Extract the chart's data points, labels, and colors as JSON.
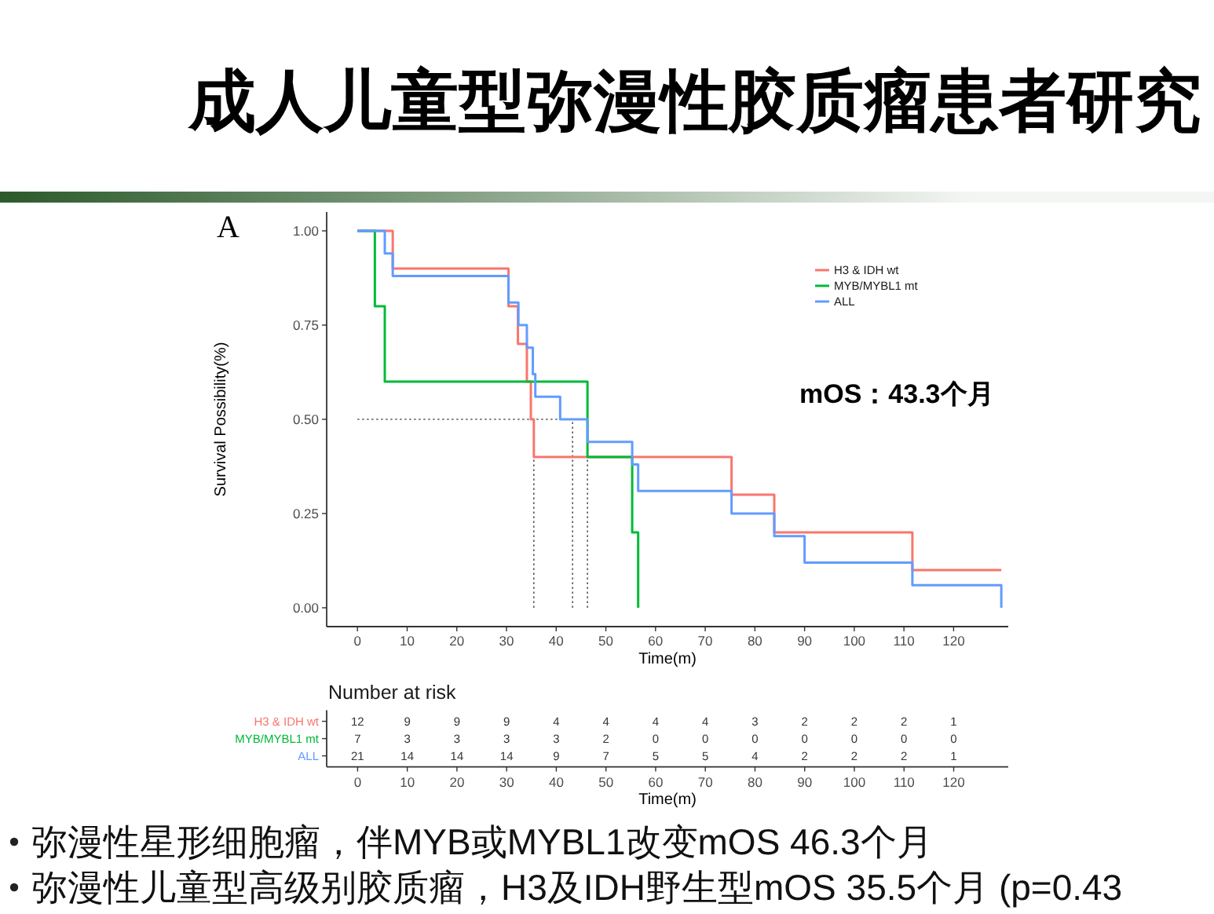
{
  "chart_data": [
    {
      "type": "step",
      "title": "成人儿童型弥漫性胶质瘤患者研究",
      "xlabel": "Time(m)",
      "ylabel": "Survival Possibility(%)",
      "xlim": [
        -6.2,
        131
      ],
      "ylim": [
        -0.05,
        1.05
      ],
      "xticks": [
        0,
        10,
        20,
        30,
        40,
        50,
        60,
        70,
        80,
        90,
        100,
        110,
        120
      ],
      "yticks": [
        {
          "value": 0,
          "label": "0.00"
        },
        {
          "value": 0.25,
          "label": "0.25"
        },
        {
          "value": 0.5,
          "label": "0.50"
        },
        {
          "value": 0.75,
          "label": "0.75"
        },
        {
          "value": 1,
          "label": "1.00"
        }
      ],
      "legend": "top right",
      "series": [
        {
          "name": "H3 & IDH wt",
          "color": "#F8766D",
          "x": [
            0,
            7.1,
            30.4,
            32.3,
            34.1,
            34.9,
            35.5,
            75.3,
            83.9,
            111.7,
            129.6
          ],
          "values": [
            1,
            0.9,
            0.8,
            0.7,
            0.6,
            0.5,
            0.4,
            0.3,
            0.2,
            0.1,
            0.1
          ]
        },
        {
          "name": "MYB/MYBL1 mt",
          "color": "#00BA38",
          "x": [
            0,
            3.5,
            5.5,
            46.3,
            55.3,
            56.5
          ],
          "values": [
            1,
            0.8,
            0.6,
            0.4,
            0.2,
            0
          ]
        },
        {
          "name": "ALL",
          "color": "#619CFF",
          "x": [
            0,
            5.5,
            7.1,
            30.4,
            32.4,
            34.1,
            35.3,
            35.8,
            40.8,
            46.3,
            55.3,
            56.5,
            75.3,
            83.9,
            90,
            111.7,
            129.6
          ],
          "values": [
            1,
            0.94,
            0.88,
            0.81,
            0.75,
            0.69,
            0.62,
            0.56,
            0.5,
            0.44,
            0.38,
            0.31,
            0.25,
            0.19,
            0.12,
            0.06,
            0
          ]
        }
      ],
      "ref_lines": [
        {
          "axis": "y",
          "value": 0.5,
          "color": "#555555",
          "line_style": "dotted"
        },
        {
          "axis": "x",
          "value": 35.5,
          "color": "#555555",
          "line_style": "dotted"
        },
        {
          "axis": "x",
          "value": 43.3,
          "color": "#555555",
          "line_style": "dotted"
        },
        {
          "axis": "x",
          "value": 46.3,
          "color": "#555555",
          "line_style": "dotted"
        }
      ],
      "annotations": [
        "A",
        "mOS：43.3个月"
      ]
    },
    {
      "type": "heatmap",
      "title": "Number at risk",
      "xlabel": "Time(m)",
      "data_labels": true,
      "categories": [
        "0",
        "10",
        "20",
        "30",
        "40",
        "50",
        "60",
        "70",
        "80",
        "90",
        "100",
        "110",
        "120"
      ],
      "y_categories": [
        "H3 & IDH wt",
        "MYB/MYBL1 mt",
        "ALL"
      ],
      "cells": [
        [
          12,
          9,
          9,
          9,
          4,
          4,
          4,
          4,
          3,
          2,
          2,
          2,
          1
        ],
        [
          7,
          3,
          3,
          3,
          3,
          2,
          0,
          0,
          0,
          0,
          0,
          0,
          0
        ],
        [
          21,
          14,
          14,
          14,
          9,
          7,
          5,
          5,
          4,
          2,
          2,
          2,
          1
        ]
      ],
      "annotations": [
        "弥漫性星形细胞瘤，伴MYB或MYBL1改变mOS 46.3个月",
        "弥漫性儿童型高级别胶质瘤，H3及IDH野生型mOS 35.5个月 (p=0.43"
      ]
    }
  ]
}
